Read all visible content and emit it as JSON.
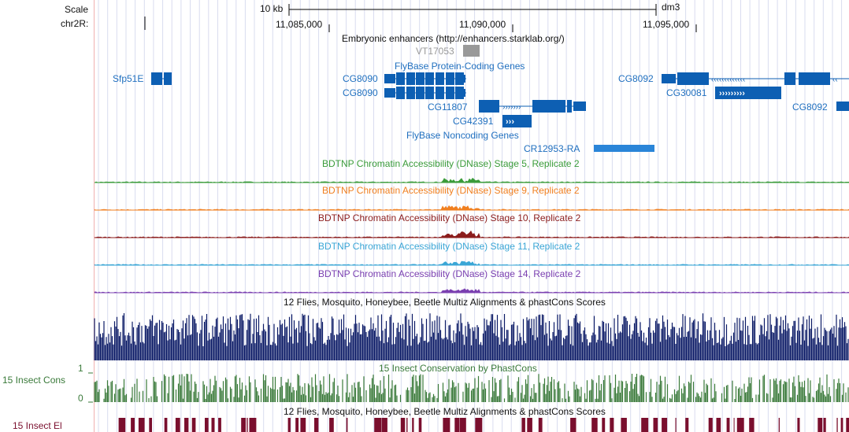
{
  "ruler": {
    "scale_label": "Scale",
    "scale_size": "10 kb",
    "assembly": "dm3",
    "chrom_label": "chr2R:",
    "ticks": [
      "11,085,000",
      "11,090,000",
      "11,095,000"
    ]
  },
  "tracks": {
    "enhancers_title": "Embryonic enhancers (http://enhancers.starklab.org/)",
    "enhancer_item": "VT17053",
    "protein_coding_title": "FlyBase Protein-Coding Genes",
    "noncoding_title": "FlyBase Noncoding Genes",
    "dnase_titles": [
      "BDTNP Chromatin Accessibility (DNase) Stage 5, Replicate 2",
      "BDTNP Chromatin Accessibility (DNase) Stage 9, Replicate 2",
      "BDTNP Chromatin Accessibility (DNase) Stage 10, Replicate 2",
      "BDTNP Chromatin Accessibility (DNase) Stage 11, Replicate 2",
      "BDTNP Chromatin Accessibility (DNase) Stage 14, Replicate 2"
    ],
    "multiz_title": "12 Flies, Mosquito, Honeybee, Beetle Multiz Alignments & phastCons Scores",
    "phastcons_title": "15 Insect Conservation by PhastCons",
    "cons_label": "15 Insect Cons",
    "cons_axis_max": "1",
    "cons_axis_min": "0",
    "multiz_title_2": "12 Flies, Mosquito, Honeybee, Beetle Multiz Alignments & phastCons Scores",
    "el_label": "15 Insect El"
  },
  "genes": {
    "sfp51e": "Sfp51E",
    "cg8090_a": "CG8090",
    "cg8090_b": "CG8090",
    "cg11807": "CG11807",
    "cg42391": "CG42391",
    "cg8092_a": "CG8092",
    "cg30081": "CG30081",
    "cg8092_b": "CG8092",
    "cr12953": "CR12953-RA"
  },
  "colors": {
    "gene": "#0d5fb3",
    "dnase": [
      "#3a9b3a",
      "#f07f1f",
      "#8b1c1c",
      "#3aa6d6",
      "#7a3fb0"
    ],
    "multiz": "#0b1a66",
    "cons": "#3a7a3a",
    "elements": "#7a0f2e"
  }
}
